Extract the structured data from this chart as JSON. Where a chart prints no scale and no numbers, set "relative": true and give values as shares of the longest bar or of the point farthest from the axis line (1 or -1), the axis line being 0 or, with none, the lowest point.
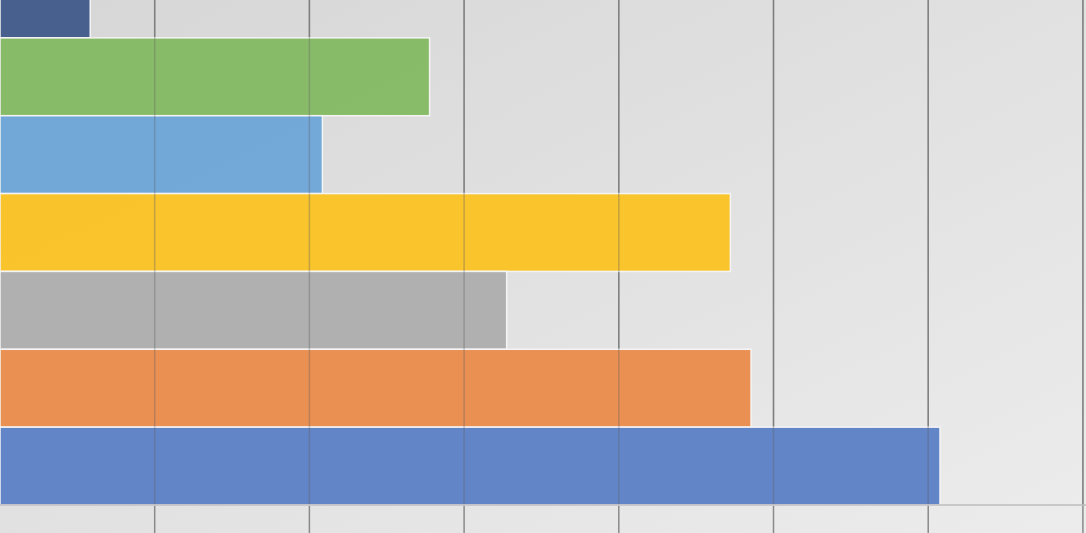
{
  "chart_data": {
    "type": "bar",
    "orientation": "horizontal",
    "relative": true,
    "grid": "x",
    "categories": [
      null,
      null,
      null,
      null,
      null,
      null,
      null
    ],
    "values": [
      0.096,
      0.457,
      0.343,
      0.777,
      0.539,
      0.799,
      1
    ],
    "colors": [
      "#3f5a8a",
      "#84b962",
      "#6ba5d8",
      "#fbc223",
      "#adadad",
      "#ea8b4b",
      "#5b80c6"
    ]
  }
}
